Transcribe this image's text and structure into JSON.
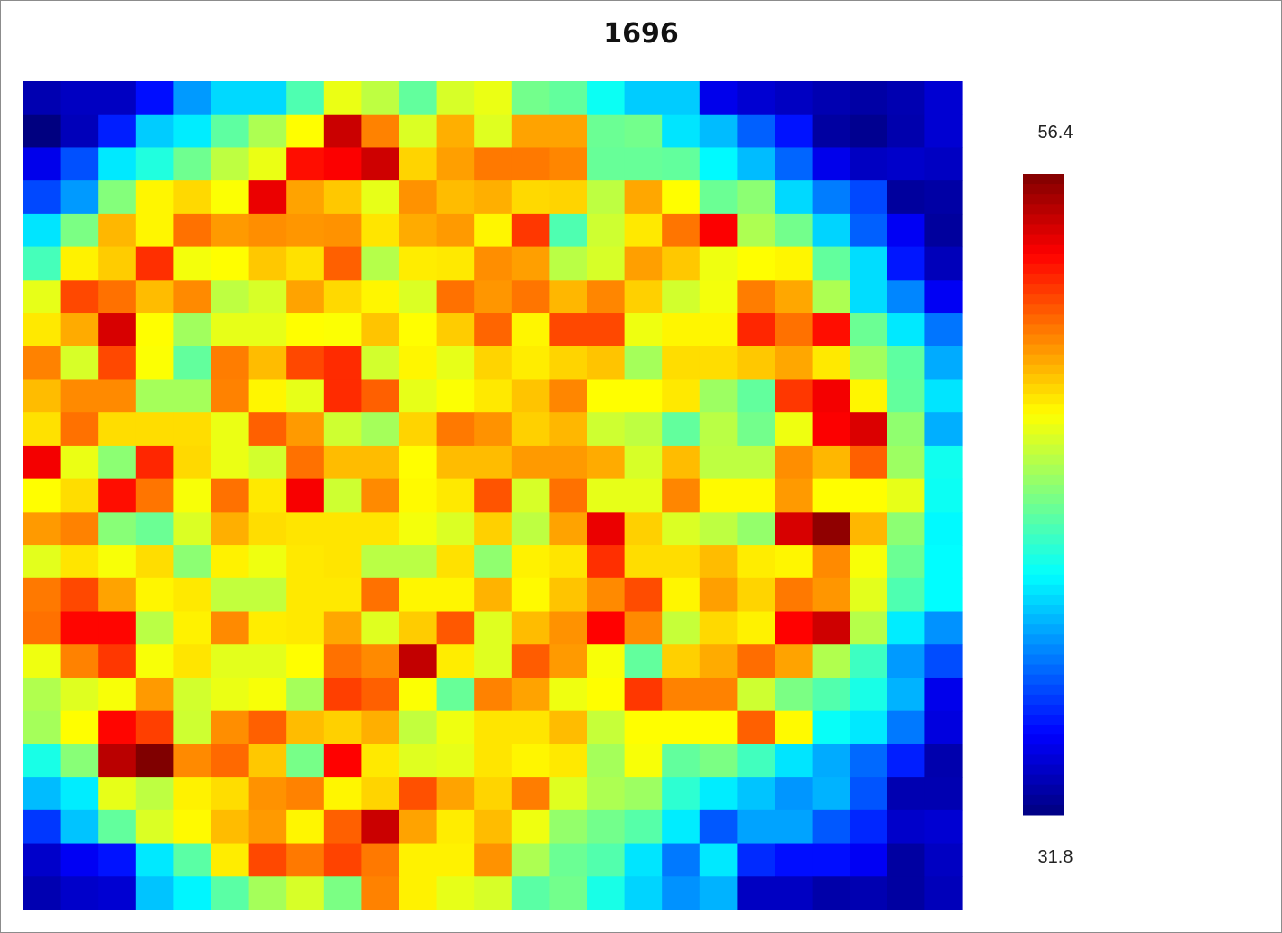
{
  "chart_data": {
    "type": "heatmap",
    "title": "1696",
    "colorbar": {
      "min": 31.8,
      "max": 56.4,
      "colormap": "jet"
    },
    "rows": 25,
    "cols": 25,
    "values": [
      [
        33.0,
        33.4,
        33.4,
        35.2,
        38.6,
        40.1,
        40.1,
        42.9,
        46.7,
        45.6,
        43.4,
        46.2,
        46.7,
        43.8,
        43.4,
        41.3,
        39.8,
        39.8,
        34.4,
        33.8,
        33.4,
        33.0,
        32.7,
        33.0,
        33.8
      ],
      [
        31.8,
        33.2,
        35.6,
        39.8,
        40.6,
        43.3,
        45.2,
        47.2,
        54.6,
        50.2,
        46.3,
        49.1,
        46.4,
        49.4,
        49.4,
        43.6,
        43.8,
        40.4,
        39.4,
        37.2,
        35.3,
        32.6,
        32.2,
        32.9,
        33.8
      ],
      [
        34.4,
        36.8,
        40.5,
        41.8,
        43.7,
        45.6,
        46.7,
        53.0,
        53.4,
        54.5,
        48.2,
        49.5,
        50.4,
        50.4,
        50.1,
        43.5,
        43.5,
        43.4,
        40.9,
        39.4,
        37.3,
        34.4,
        33.4,
        33.6,
        33.4
      ],
      [
        36.6,
        38.6,
        44.2,
        47.4,
        48.1,
        47.1,
        53.8,
        49.4,
        48.5,
        46.6,
        49.8,
        48.8,
        49.1,
        48.1,
        48.2,
        45.6,
        49.3,
        47.2,
        43.6,
        44.4,
        40.1,
        37.9,
        36.6,
        32.5,
        32.7
      ],
      [
        40.4,
        44.0,
        48.9,
        47.4,
        50.6,
        49.6,
        49.9,
        49.7,
        49.8,
        47.8,
        49.2,
        49.6,
        47.4,
        52.0,
        42.9,
        46.0,
        47.7,
        50.5,
        53.4,
        45.2,
        43.8,
        40.0,
        37.2,
        34.6,
        32.5
      ],
      [
        42.7,
        47.5,
        48.4,
        52.2,
        46.9,
        47.2,
        48.5,
        47.9,
        51.0,
        45.4,
        47.6,
        47.7,
        49.9,
        49.5,
        45.5,
        46.2,
        49.5,
        48.5,
        46.8,
        47.2,
        47.4,
        43.4,
        40.2,
        35.4,
        33.2
      ],
      [
        46.6,
        51.6,
        50.6,
        48.8,
        50.0,
        45.6,
        46.2,
        49.4,
        48.1,
        47.4,
        46.3,
        50.6,
        49.7,
        50.5,
        48.9,
        50.1,
        48.3,
        46.1,
        46.9,
        50.3,
        49.3,
        45.2,
        40.2,
        38.1,
        34.6
      ],
      [
        47.7,
        49.2,
        54.3,
        47.2,
        44.9,
        46.6,
        46.6,
        47.2,
        47.1,
        48.6,
        47.2,
        48.4,
        50.9,
        47.4,
        51.6,
        51.6,
        46.8,
        47.4,
        47.4,
        52.4,
        50.6,
        53.0,
        43.6,
        40.5,
        37.7
      ],
      [
        50.2,
        46.2,
        51.6,
        47.1,
        43.4,
        50.3,
        48.8,
        51.6,
        52.3,
        46.1,
        47.4,
        46.6,
        48.2,
        47.6,
        48.2,
        48.6,
        45.0,
        48.0,
        48.0,
        48.5,
        49.3,
        47.7,
        44.9,
        43.3,
        39.0
      ],
      [
        48.8,
        50.0,
        50.0,
        45.0,
        45.0,
        50.2,
        47.4,
        46.6,
        52.3,
        51.0,
        46.6,
        47.1,
        47.7,
        48.6,
        50.1,
        47.2,
        47.2,
        47.7,
        44.8,
        43.4,
        52.0,
        53.6,
        47.4,
        43.4,
        40.4
      ],
      [
        47.9,
        50.6,
        48.0,
        48.0,
        48.0,
        46.7,
        51.0,
        49.6,
        46.0,
        45.0,
        48.2,
        50.4,
        49.8,
        48.3,
        48.9,
        46.0,
        45.6,
        43.4,
        45.5,
        43.8,
        46.8,
        53.4,
        54.2,
        44.5,
        39.1
      ],
      [
        53.6,
        46.7,
        44.4,
        52.4,
        48.1,
        46.7,
        46.1,
        50.6,
        48.8,
        48.8,
        47.2,
        48.8,
        48.8,
        49.6,
        49.6,
        49.2,
        46.2,
        48.8,
        45.6,
        45.6,
        49.9,
        48.9,
        51.0,
        44.8,
        41.4
      ],
      [
        47.2,
        48.0,
        53.0,
        50.5,
        47.0,
        50.6,
        47.7,
        53.5,
        46.0,
        50.0,
        47.3,
        47.7,
        51.3,
        46.2,
        50.6,
        46.6,
        46.6,
        50.1,
        47.3,
        47.3,
        49.6,
        47.2,
        47.2,
        46.6,
        41.3
      ],
      [
        49.6,
        50.2,
        44.3,
        43.6,
        46.3,
        49.1,
        48.0,
        47.8,
        47.8,
        47.8,
        46.9,
        46.3,
        48.3,
        45.6,
        49.4,
        53.8,
        48.3,
        46.3,
        45.6,
        44.6,
        54.3,
        56.0,
        48.9,
        44.4,
        40.9
      ],
      [
        46.5,
        47.8,
        47.0,
        48.0,
        44.4,
        47.5,
        46.8,
        47.7,
        47.8,
        45.5,
        45.5,
        47.9,
        44.5,
        47.5,
        47.8,
        52.2,
        48.0,
        48.0,
        48.8,
        47.6,
        47.4,
        50.0,
        47.0,
        43.6,
        41.0
      ],
      [
        50.4,
        51.6,
        49.4,
        47.4,
        47.7,
        45.7,
        45.7,
        47.7,
        47.7,
        50.6,
        47.4,
        47.4,
        49.0,
        47.3,
        48.6,
        50.0,
        51.5,
        47.4,
        49.5,
        48.2,
        50.4,
        49.7,
        46.5,
        42.9,
        41.0
      ],
      [
        50.6,
        53.2,
        53.2,
        45.5,
        47.5,
        50.0,
        47.6,
        47.7,
        49.3,
        46.4,
        48.4,
        51.2,
        46.4,
        48.8,
        49.8,
        53.3,
        50.0,
        45.8,
        48.1,
        47.5,
        53.3,
        54.5,
        45.4,
        40.6,
        38.4
      ],
      [
        46.8,
        50.2,
        52.0,
        47.0,
        47.8,
        46.5,
        46.5,
        47.2,
        50.6,
        50.0,
        54.8,
        47.6,
        46.4,
        51.1,
        49.6,
        47.0,
        43.4,
        48.3,
        49.2,
        50.7,
        49.4,
        45.3,
        42.5,
        38.6,
        36.7
      ],
      [
        45.3,
        46.4,
        47.0,
        49.6,
        46.1,
        46.7,
        47.0,
        45.0,
        51.8,
        51.0,
        47.1,
        43.5,
        50.2,
        49.4,
        46.8,
        47.2,
        52.0,
        50.2,
        50.2,
        46.0,
        44.0,
        43.0,
        41.6,
        39.2,
        34.4
      ],
      [
        45.0,
        47.2,
        53.2,
        51.8,
        46.0,
        49.9,
        51.0,
        48.8,
        48.3,
        49.1,
        45.7,
        46.8,
        47.8,
        47.8,
        48.8,
        45.8,
        47.2,
        47.2,
        47.2,
        51.0,
        47.3,
        41.2,
        40.5,
        37.8,
        34.1
      ],
      [
        41.6,
        44.3,
        55.0,
        56.4,
        50.0,
        50.8,
        48.5,
        43.9,
        53.3,
        47.7,
        46.4,
        46.6,
        47.8,
        47.4,
        47.7,
        45.0,
        47.0,
        43.4,
        44.0,
        42.6,
        40.4,
        39.0,
        37.4,
        35.6,
        32.9
      ],
      [
        39.4,
        40.6,
        46.6,
        45.6,
        47.5,
        48.0,
        49.8,
        50.2,
        47.4,
        48.2,
        51.4,
        49.4,
        48.2,
        50.3,
        46.4,
        45.2,
        44.8,
        42.1,
        40.6,
        39.6,
        38.5,
        39.2,
        36.9,
        33.0,
        33.0
      ],
      [
        36.2,
        39.6,
        43.4,
        46.3,
        47.3,
        48.8,
        49.6,
        47.4,
        51.0,
        54.6,
        49.4,
        47.6,
        48.8,
        46.8,
        44.6,
        43.8,
        43.1,
        40.6,
        37.0,
        38.8,
        38.8,
        37.0,
        35.8,
        33.6,
        33.8
      ],
      [
        33.6,
        34.6,
        35.3,
        40.5,
        43.2,
        47.6,
        51.6,
        50.4,
        51.7,
        50.4,
        47.5,
        47.5,
        49.8,
        45.2,
        43.6,
        43.0,
        40.4,
        37.8,
        40.5,
        35.9,
        35.2,
        35.2,
        34.6,
        32.6,
        33.4
      ],
      [
        33.0,
        33.6,
        33.8,
        39.6,
        40.8,
        43.2,
        45.0,
        46.2,
        44.0,
        50.2,
        47.5,
        46.6,
        46.2,
        43.2,
        43.8,
        41.6,
        40.0,
        38.4,
        39.2,
        33.4,
        33.4,
        32.8,
        33.0,
        32.6,
        33.2
      ]
    ]
  }
}
